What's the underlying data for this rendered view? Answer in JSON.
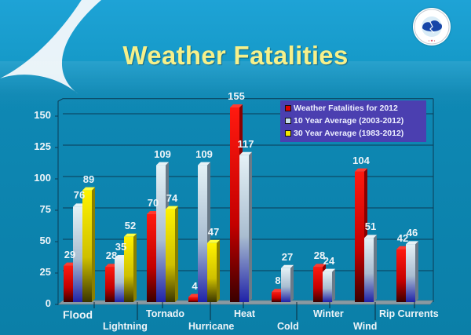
{
  "title": "Weather Fatalities",
  "logo": {
    "text": "NATIONAL WEATHER SERVICE",
    "icon": "nws-logo-icon"
  },
  "colors": {
    "series_2012": "#e00000",
    "series_10yr": "#c8e0ea",
    "series_30yr": "#f2e600",
    "legend_bg": "#4b3fb0",
    "title": "#f6f08a",
    "background": "#0b7fa8"
  },
  "legend": {
    "items": [
      {
        "label": "Weather Fatalities for 2012",
        "color": "#e00000"
      },
      {
        "label": "10 Year Average (2003-2012)",
        "color": "#c8e0ea"
      },
      {
        "label": "30 Year Average (1983-2012)",
        "color": "#f2e600"
      }
    ]
  },
  "y_ticks": [
    "0",
    "25",
    "50",
    "75",
    "100",
    "125",
    "150"
  ],
  "chart_data": {
    "type": "bar",
    "title": "Weather Fatalities",
    "xlabel": "",
    "ylabel": "",
    "ylim": [
      0,
      160
    ],
    "grid": true,
    "legend_position": "top-right",
    "categories": [
      "Flood",
      "Lightning",
      "Tornado",
      "Hurricane",
      "Heat",
      "Cold",
      "Winter",
      "Wind",
      "Rip Currents"
    ],
    "series": [
      {
        "name": "Weather Fatalities for 2012",
        "values": [
          29,
          28,
          70,
          4,
          155,
          8,
          28,
          104,
          42
        ]
      },
      {
        "name": "10 Year Average (2003-2012)",
        "values": [
          76,
          35,
          109,
          109,
          117,
          27,
          24,
          51,
          46
        ]
      },
      {
        "name": "30 Year Average (1983-2012)",
        "values": [
          89,
          52,
          74,
          47,
          null,
          null,
          null,
          null,
          null
        ]
      }
    ]
  }
}
